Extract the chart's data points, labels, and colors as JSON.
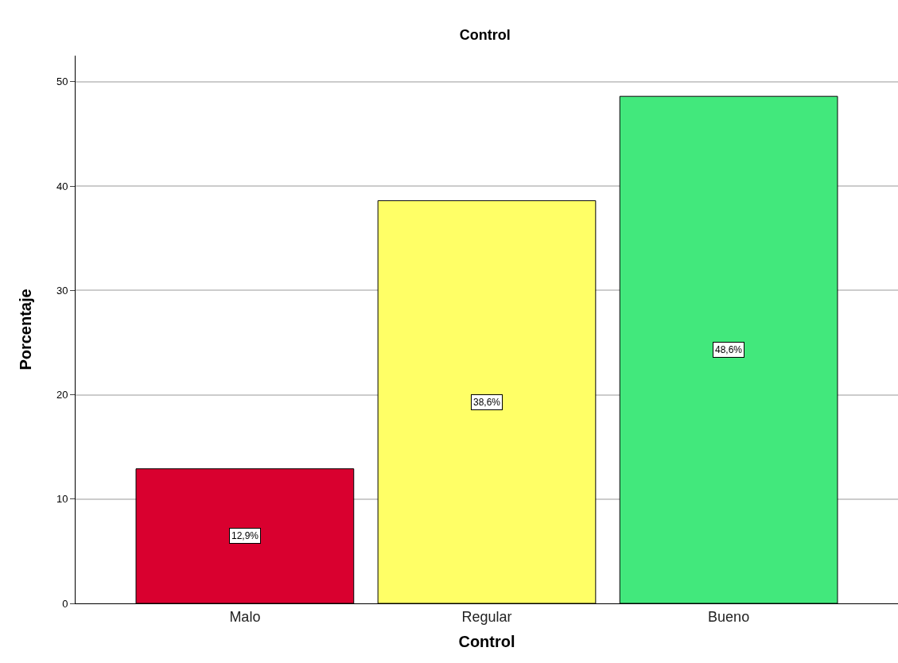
{
  "chart_data": {
    "type": "bar",
    "title": "Control",
    "xlabel": "Control",
    "ylabel": "Porcentaje",
    "categories": [
      "Malo",
      "Regular",
      "Bueno"
    ],
    "values": [
      12.9,
      38.6,
      48.6
    ],
    "colors": [
      "#d9002f",
      "#ffff66",
      "#42e87c"
    ],
    "value_labels": [
      "12,9%",
      "38,6%",
      "48,6%"
    ],
    "ylim": [
      0,
      52.5
    ],
    "yticks": [
      0,
      10,
      20,
      30,
      40,
      50
    ],
    "grid": "y"
  }
}
